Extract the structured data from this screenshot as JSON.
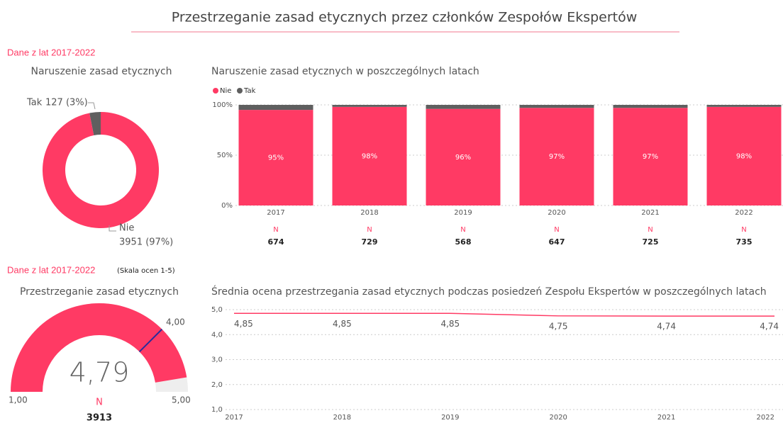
{
  "title": "Przestrzeganie zasad etycznych przez członków Zespołów Ekspertów",
  "chart_data": [
    {
      "type": "pie",
      "section": "Dane z lat 2017-2022",
      "title": "Naruszenie zasad etycznych",
      "categories": [
        "Tak",
        "Nie"
      ],
      "values": [
        127,
        3951
      ],
      "value_labels": [
        "127 (3%)",
        "3951 (97%)"
      ],
      "colors": [
        "#5f5f5f",
        "#ff3a64"
      ]
    },
    {
      "type": "bar",
      "stacked": true,
      "title": "Naruszenie zasad etycznych w poszczególnych latach",
      "categories": [
        "2017",
        "2018",
        "2019",
        "2020",
        "2021",
        "2022"
      ],
      "series": [
        {
          "name": "Nie",
          "color": "#ff3a64",
          "values": [
            95,
            98,
            96,
            97,
            97,
            98
          ],
          "value_labels": [
            "95%",
            "98%",
            "96%",
            "97%",
            "97%",
            "98%"
          ]
        },
        {
          "name": "Tak",
          "color": "#5f5f5f",
          "values": [
            5,
            2,
            4,
            3,
            3,
            2
          ]
        }
      ],
      "ylim": [
        0,
        100
      ],
      "yticks": [
        {
          "value": 0,
          "label": "0%"
        },
        {
          "value": 50,
          "label": "50%"
        },
        {
          "value": 100,
          "label": "100%"
        }
      ],
      "grid": true,
      "legend": "top-left",
      "n_label": "N",
      "n_values": [
        674,
        729,
        568,
        647,
        725,
        735
      ]
    },
    {
      "type": "gauge",
      "section": "Dane z lat 2017-2022",
      "note": "(Skala ocen 1-5)",
      "title": "Przestrzeganie zasad etycznych",
      "value": 4.79,
      "value_label": "4,79",
      "min": {
        "value": 1,
        "label": "1,00"
      },
      "max": {
        "value": 5,
        "label": "5,00"
      },
      "target": {
        "value": 4,
        "label": "4,00"
      },
      "color": "#ff3a64",
      "target_color": "#2b2b9a",
      "n_label": "N",
      "n": 3913
    },
    {
      "type": "line",
      "title": "Średnia ocena przestrzegania zasad etycznych podczas posiedzeń Zespołu Ekspertów w poszczególnych latach",
      "categories": [
        "2017",
        "2018",
        "2019",
        "2020",
        "2021",
        "2022"
      ],
      "series": [
        {
          "name": "Średnia",
          "color": "#ff3a64",
          "values": [
            4.85,
            4.85,
            4.85,
            4.75,
            4.74,
            4.74
          ],
          "value_labels": [
            "4,85",
            "4,85",
            "4,85",
            "4,75",
            "4,74",
            "4,74"
          ]
        }
      ],
      "ylim": [
        1,
        5
      ],
      "yticks": [
        {
          "value": 1,
          "label": "1,0"
        },
        {
          "value": 2,
          "label": "2,0"
        },
        {
          "value": 3,
          "label": "3,0"
        },
        {
          "value": 4,
          "label": "4,0"
        },
        {
          "value": 5,
          "label": "5,0"
        }
      ],
      "grid": true
    }
  ]
}
